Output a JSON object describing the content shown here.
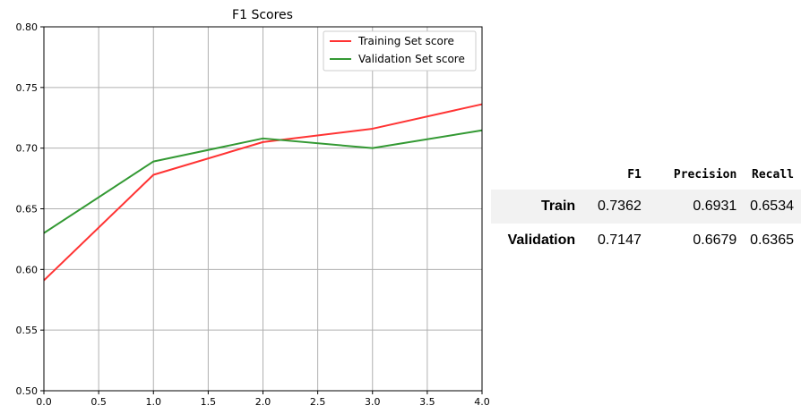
{
  "chart_data": {
    "type": "line",
    "title": "F1 Scores",
    "xlabel": "",
    "ylabel": "",
    "xlim": [
      0.0,
      4.0
    ],
    "ylim": [
      0.5,
      0.8
    ],
    "x_ticks": [
      "0.0",
      "0.5",
      "1.0",
      "1.5",
      "2.0",
      "2.5",
      "3.0",
      "3.5",
      "4.0"
    ],
    "y_ticks": [
      "0.50",
      "0.55",
      "0.60",
      "0.65",
      "0.70",
      "0.75",
      "0.80"
    ],
    "grid": true,
    "legend_position": "top-right",
    "x": [
      0,
      1,
      2,
      3,
      4
    ],
    "series": [
      {
        "name": "Training Set score",
        "color": "#ff3333",
        "values": [
          0.591,
          0.678,
          0.705,
          0.716,
          0.7362
        ]
      },
      {
        "name": "Validation Set score",
        "color": "#339933",
        "values": [
          0.63,
          0.689,
          0.708,
          0.7,
          0.7147
        ]
      }
    ]
  },
  "metrics_table": {
    "columns": [
      "",
      "F1",
      "Precision",
      "Recall"
    ],
    "rows": [
      {
        "label": "Train",
        "f1": "0.7362",
        "precision": "0.6931",
        "recall": "0.6534"
      },
      {
        "label": "Validation",
        "f1": "0.7147",
        "precision": "0.6679",
        "recall": "0.6365"
      }
    ]
  }
}
